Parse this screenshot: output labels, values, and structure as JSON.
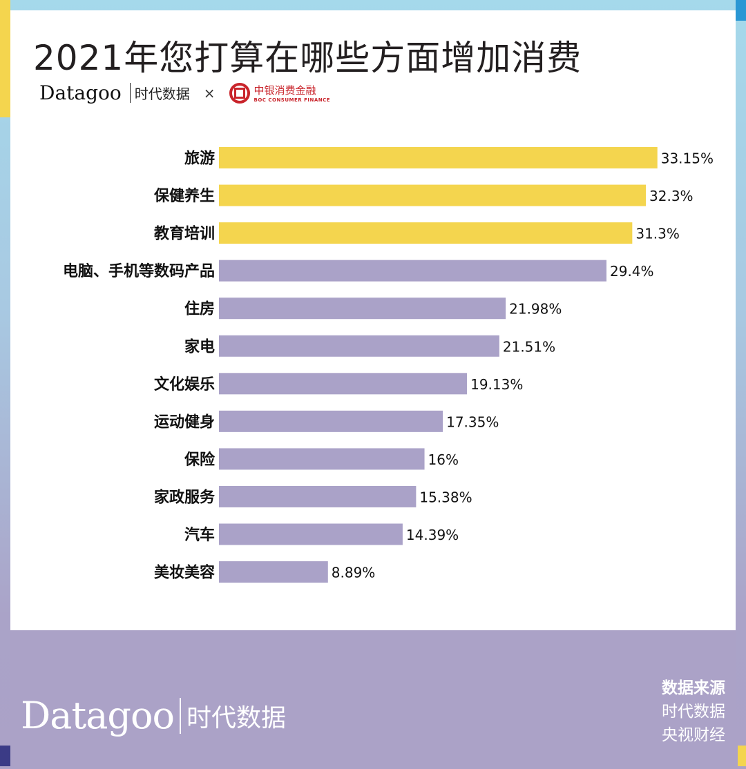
{
  "title": "2021年您打算在哪些方面增加消费",
  "logos": {
    "datagoo": "Datagoo",
    "datagoo_cn": "时代数据",
    "times": "×",
    "boc_cn": "中银消费金融",
    "boc_en": "BOC CONSUMER FINANCE"
  },
  "footer": {
    "datagoo": "Datagoo",
    "datagoo_cn": "时代数据",
    "source_heading": "数据来源",
    "sources": [
      "时代数据",
      "央视财经"
    ]
  },
  "colors": {
    "top3": "#f4d54e",
    "other": "#aaa2c8"
  },
  "chart_data": {
    "type": "bar",
    "orientation": "horizontal",
    "categories": [
      "旅游",
      "保健养生",
      "教育培训",
      "电脑、手机等数码产品",
      "住房",
      "家电",
      "文化娱乐",
      "运动健身",
      "保险",
      "家政服务",
      "汽车",
      "美妆美容"
    ],
    "values": [
      33.15,
      32.3,
      31.3,
      29.4,
      21.98,
      21.51,
      19.13,
      17.35,
      16,
      15.38,
      14.39,
      8.89
    ],
    "labels": [
      "33.15%",
      "32.3%",
      "31.3%",
      "29.4%",
      "21.98%",
      "21.51%",
      "19.13%",
      "17.35%",
      "16%",
      "15.38%",
      "14.39%",
      "8.89%"
    ],
    "highlighted": [
      0,
      1,
      2
    ],
    "unit": "%",
    "grid": false,
    "legend": "none"
  }
}
